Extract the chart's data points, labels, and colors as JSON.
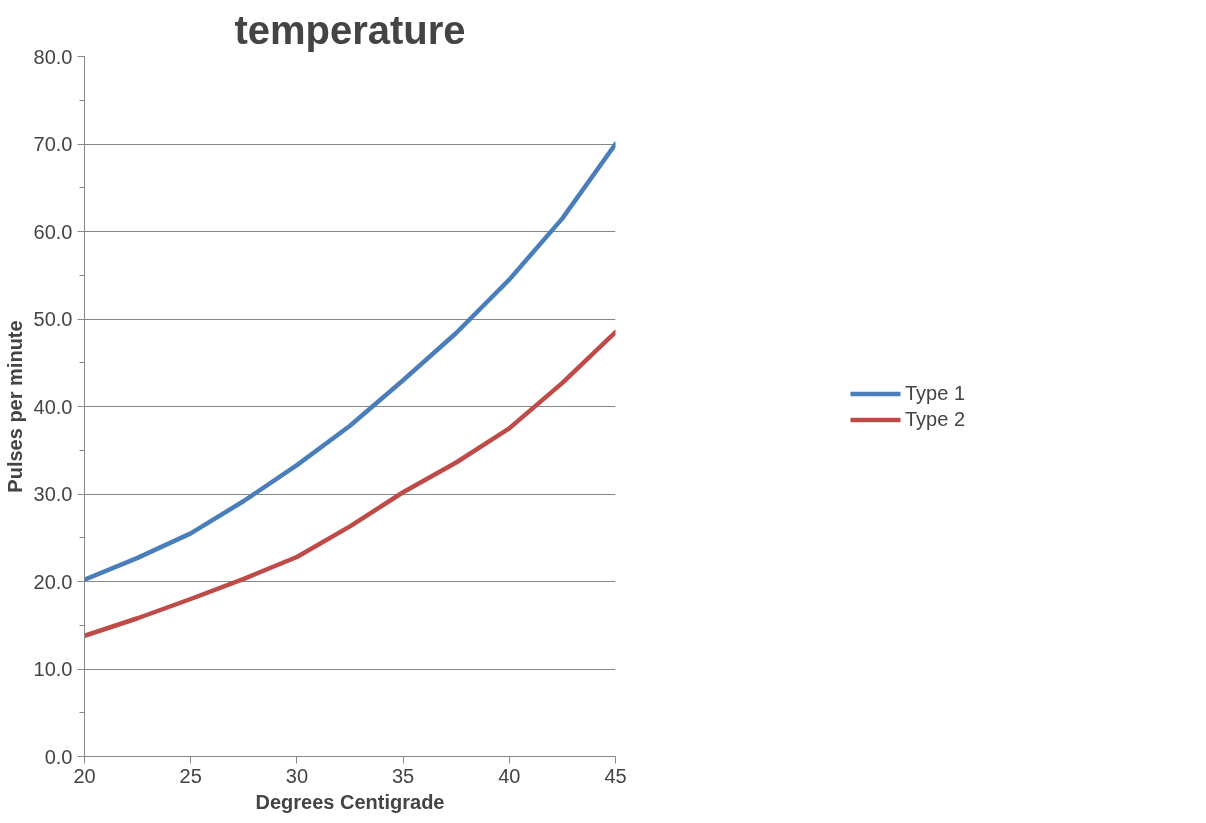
{
  "chart_data": {
    "type": "line",
    "title": "temperature",
    "xlabel": "Degrees Centigrade",
    "ylabel": "Pulses per minute",
    "series": [
      {
        "name": "Type 1",
        "color": "#4a7ebb",
        "x": [
          20,
          22.5,
          25,
          27.5,
          30,
          32.5,
          35,
          37.5,
          40,
          42.5,
          45
        ],
        "values": [
          20.2,
          22.7,
          25.5,
          29.2,
          33.3,
          37.8,
          43.0,
          48.4,
          54.5,
          61.5,
          70.0
        ]
      },
      {
        "name": "Type 2",
        "color": "#be4b48",
        "x": [
          20,
          22.5,
          25,
          27.5,
          30,
          32.5,
          35,
          37.5,
          40,
          42.5,
          45
        ],
        "values": [
          13.8,
          15.8,
          18.0,
          20.3,
          22.8,
          26.3,
          30.2,
          33.6,
          37.5,
          42.7,
          48.5
        ]
      }
    ],
    "xlim": [
      20,
      45
    ],
    "xticks": [
      20,
      25,
      30,
      35,
      40,
      45
    ],
    "ylim": [
      0,
      80
    ],
    "yticks": [
      {
        "value": 0,
        "label": "0.0"
      },
      {
        "value": 10,
        "label": "10.0"
      },
      {
        "value": 20,
        "label": "20.0"
      },
      {
        "value": 30,
        "label": "30.0"
      },
      {
        "value": 40,
        "label": "40.0"
      },
      {
        "value": 50,
        "label": "50.0"
      },
      {
        "value": 60,
        "label": "60.0"
      },
      {
        "value": 70,
        "label": "70.0"
      },
      {
        "value": 80,
        "label": "80.0"
      }
    ],
    "grid": "y",
    "legend": "right",
    "marker": "none",
    "line_style": "solid"
  }
}
